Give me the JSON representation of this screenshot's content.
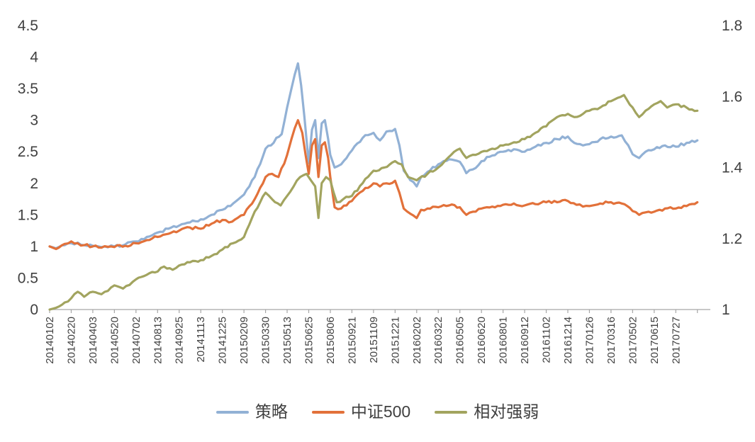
{
  "chart_data": {
    "type": "line",
    "title": "",
    "xlabel": "",
    "ylabel_left": "",
    "ylabel_right": "",
    "grid": false,
    "legend_position": "bottom",
    "axis_color": "#a6a6a6",
    "label_color": "#404040",
    "x_domain": [
      0,
      30.6
    ],
    "x_tick_labels": [
      "20140102",
      "20140220",
      "20140403",
      "20140520",
      "20140702",
      "20140813",
      "20140925",
      "20141113",
      "20141225",
      "20150209",
      "20150330",
      "20150513",
      "20150625",
      "20150806",
      "20150921",
      "20151109",
      "20151221",
      "20160202",
      "20160322",
      "20160505",
      "20160620",
      "20160801",
      "20160912",
      "20161102",
      "20161214",
      "20170126",
      "20170316",
      "20170502",
      "20170615",
      "20170727"
    ],
    "left_axis": {
      "min": 0,
      "max": 4.5,
      "ticks": [
        0,
        0.5,
        1,
        1.5,
        2,
        2.5,
        3,
        3.5,
        4,
        4.5
      ],
      "tick_labels": [
        "0",
        "0.5",
        "1",
        "1.5",
        "2",
        "2.5",
        "3",
        "3.5",
        "4",
        "4.5"
      ]
    },
    "right_axis": {
      "min": 1,
      "max": 1.8,
      "ticks": [
        1,
        1.2,
        1.4,
        1.6,
        1.8
      ],
      "tick_labels": [
        "1",
        "1.2",
        "1.4",
        "1.6",
        "1.8"
      ]
    },
    "series": [
      {
        "name": "策略",
        "axis": "left",
        "color": "#92b1d5",
        "points": [
          [
            0,
            1.0
          ],
          [
            0.3,
            0.97
          ],
          [
            0.7,
            1.02
          ],
          [
            1,
            1.05
          ],
          [
            1.3,
            1.06
          ],
          [
            1.6,
            1.02
          ],
          [
            2,
            1.01
          ],
          [
            2.4,
            0.99
          ],
          [
            3,
            1.0
          ],
          [
            3.5,
            1.03
          ],
          [
            4,
            1.08
          ],
          [
            4.5,
            1.15
          ],
          [
            5,
            1.22
          ],
          [
            5.5,
            1.28
          ],
          [
            6,
            1.33
          ],
          [
            6.5,
            1.38
          ],
          [
            7,
            1.43
          ],
          [
            7.5,
            1.5
          ],
          [
            8,
            1.58
          ],
          [
            8.5,
            1.68
          ],
          [
            9,
            1.82
          ],
          [
            9.5,
            2.1
          ],
          [
            10,
            2.55
          ],
          [
            10.25,
            2.6
          ],
          [
            10.5,
            2.72
          ],
          [
            10.75,
            2.78
          ],
          [
            11,
            3.2
          ],
          [
            11.2,
            3.5
          ],
          [
            11.35,
            3.72
          ],
          [
            11.5,
            3.9
          ],
          [
            11.65,
            3.55
          ],
          [
            11.8,
            3.05
          ],
          [
            12,
            2.32
          ],
          [
            12.15,
            2.85
          ],
          [
            12.3,
            3.0
          ],
          [
            12.45,
            2.4
          ],
          [
            12.6,
            2.95
          ],
          [
            12.75,
            3.0
          ],
          [
            12.9,
            2.7
          ],
          [
            13,
            2.45
          ],
          [
            13.2,
            2.25
          ],
          [
            13.5,
            2.3
          ],
          [
            13.75,
            2.4
          ],
          [
            14,
            2.52
          ],
          [
            14.5,
            2.72
          ],
          [
            15,
            2.8
          ],
          [
            15.3,
            2.68
          ],
          [
            15.6,
            2.82
          ],
          [
            16,
            2.86
          ],
          [
            16.2,
            2.6
          ],
          [
            16.4,
            2.2
          ],
          [
            16.7,
            2.05
          ],
          [
            17,
            1.95
          ],
          [
            17.2,
            2.1
          ],
          [
            17.5,
            2.18
          ],
          [
            18,
            2.3
          ],
          [
            18.5,
            2.38
          ],
          [
            19,
            2.34
          ],
          [
            19.3,
            2.16
          ],
          [
            19.6,
            2.22
          ],
          [
            20,
            2.35
          ],
          [
            20.5,
            2.44
          ],
          [
            21,
            2.5
          ],
          [
            21.5,
            2.54
          ],
          [
            22,
            2.5
          ],
          [
            22.5,
            2.58
          ],
          [
            23,
            2.64
          ],
          [
            23.5,
            2.7
          ],
          [
            24,
            2.74
          ],
          [
            24.3,
            2.64
          ],
          [
            24.7,
            2.6
          ],
          [
            25,
            2.62
          ],
          [
            25.5,
            2.7
          ],
          [
            26,
            2.74
          ],
          [
            26.5,
            2.76
          ],
          [
            26.8,
            2.6
          ],
          [
            27,
            2.46
          ],
          [
            27.3,
            2.4
          ],
          [
            27.6,
            2.5
          ],
          [
            28,
            2.54
          ],
          [
            28.5,
            2.6
          ],
          [
            29,
            2.58
          ],
          [
            29.5,
            2.64
          ],
          [
            30,
            2.68
          ]
        ]
      },
      {
        "name": "中证500",
        "axis": "left",
        "color": "#e2713a",
        "points": [
          [
            0,
            1.0
          ],
          [
            0.3,
            0.96
          ],
          [
            0.7,
            1.04
          ],
          [
            1,
            1.08
          ],
          [
            1.3,
            1.05
          ],
          [
            1.6,
            1.02
          ],
          [
            2,
            1.0
          ],
          [
            2.4,
            0.98
          ],
          [
            3,
            0.99
          ],
          [
            3.5,
            1.01
          ],
          [
            4,
            1.05
          ],
          [
            4.5,
            1.1
          ],
          [
            5,
            1.15
          ],
          [
            5.5,
            1.2
          ],
          [
            6,
            1.25
          ],
          [
            6.5,
            1.3
          ],
          [
            7,
            1.28
          ],
          [
            7.5,
            1.36
          ],
          [
            8,
            1.42
          ],
          [
            8.3,
            1.38
          ],
          [
            8.6,
            1.43
          ],
          [
            9,
            1.5
          ],
          [
            9.5,
            1.75
          ],
          [
            10,
            2.1
          ],
          [
            10.3,
            2.15
          ],
          [
            10.6,
            2.1
          ],
          [
            11,
            2.45
          ],
          [
            11.2,
            2.7
          ],
          [
            11.5,
            3.0
          ],
          [
            11.7,
            2.8
          ],
          [
            12,
            2.15
          ],
          [
            12.15,
            2.6
          ],
          [
            12.3,
            2.7
          ],
          [
            12.45,
            2.1
          ],
          [
            12.6,
            2.6
          ],
          [
            12.75,
            2.65
          ],
          [
            12.9,
            2.4
          ],
          [
            13,
            2.1
          ],
          [
            13.2,
            1.62
          ],
          [
            13.5,
            1.6
          ],
          [
            13.75,
            1.65
          ],
          [
            14,
            1.72
          ],
          [
            14.5,
            1.88
          ],
          [
            15,
            2.0
          ],
          [
            15.3,
            1.95
          ],
          [
            15.6,
            2.0
          ],
          [
            16,
            2.04
          ],
          [
            16.2,
            1.85
          ],
          [
            16.4,
            1.6
          ],
          [
            16.7,
            1.52
          ],
          [
            17,
            1.45
          ],
          [
            17.2,
            1.58
          ],
          [
            17.5,
            1.6
          ],
          [
            18,
            1.62
          ],
          [
            18.5,
            1.65
          ],
          [
            19,
            1.62
          ],
          [
            19.3,
            1.5
          ],
          [
            19.6,
            1.55
          ],
          [
            20,
            1.6
          ],
          [
            20.5,
            1.63
          ],
          [
            21,
            1.66
          ],
          [
            21.5,
            1.68
          ],
          [
            22,
            1.65
          ],
          [
            22.5,
            1.67
          ],
          [
            23,
            1.7
          ],
          [
            23.5,
            1.7
          ],
          [
            24,
            1.72
          ],
          [
            24.4,
            1.66
          ],
          [
            24.7,
            1.63
          ],
          [
            25,
            1.64
          ],
          [
            25.5,
            1.68
          ],
          [
            26,
            1.7
          ],
          [
            26.5,
            1.68
          ],
          [
            27,
            1.56
          ],
          [
            27.3,
            1.5
          ],
          [
            27.6,
            1.54
          ],
          [
            28,
            1.55
          ],
          [
            28.5,
            1.6
          ],
          [
            29,
            1.6
          ],
          [
            29.5,
            1.64
          ],
          [
            30,
            1.7
          ]
        ]
      },
      {
        "name": "相对强弱",
        "axis": "right",
        "color": "#a2a45f",
        "points": [
          [
            0,
            1.0
          ],
          [
            0.3,
            1.005
          ],
          [
            0.7,
            1.02
          ],
          [
            1,
            1.032
          ],
          [
            1.3,
            1.05
          ],
          [
            1.6,
            1.036
          ],
          [
            2,
            1.05
          ],
          [
            2.4,
            1.043
          ],
          [
            3,
            1.068
          ],
          [
            3.4,
            1.059
          ],
          [
            4,
            1.085
          ],
          [
            4.5,
            1.098
          ],
          [
            5,
            1.107
          ],
          [
            5.3,
            1.121
          ],
          [
            5.7,
            1.112
          ],
          [
            6,
            1.124
          ],
          [
            6.5,
            1.133
          ],
          [
            7,
            1.139
          ],
          [
            7.5,
            1.151
          ],
          [
            8,
            1.169
          ],
          [
            8.5,
            1.187
          ],
          [
            9,
            1.204
          ],
          [
            9.5,
            1.276
          ],
          [
            10,
            1.329
          ],
          [
            10.3,
            1.311
          ],
          [
            10.7,
            1.293
          ],
          [
            11,
            1.32
          ],
          [
            11.3,
            1.347
          ],
          [
            11.6,
            1.373
          ],
          [
            11.9,
            1.382
          ],
          [
            12.1,
            1.364
          ],
          [
            12.3,
            1.347
          ],
          [
            12.45,
            1.258
          ],
          [
            12.6,
            1.356
          ],
          [
            12.8,
            1.373
          ],
          [
            13,
            1.364
          ],
          [
            13.3,
            1.302
          ],
          [
            13.6,
            1.311
          ],
          [
            14,
            1.32
          ],
          [
            14.5,
            1.356
          ],
          [
            15,
            1.391
          ],
          [
            15.5,
            1.4
          ],
          [
            16,
            1.418
          ],
          [
            16.3,
            1.409
          ],
          [
            16.6,
            1.373
          ],
          [
            17,
            1.364
          ],
          [
            17.5,
            1.382
          ],
          [
            18,
            1.4
          ],
          [
            18.3,
            1.418
          ],
          [
            18.6,
            1.436
          ],
          [
            19,
            1.453
          ],
          [
            19.3,
            1.427
          ],
          [
            19.6,
            1.436
          ],
          [
            20,
            1.444
          ],
          [
            20.5,
            1.453
          ],
          [
            21,
            1.462
          ],
          [
            21.5,
            1.471
          ],
          [
            22,
            1.48
          ],
          [
            22.5,
            1.498
          ],
          [
            23,
            1.516
          ],
          [
            23.5,
            1.542
          ],
          [
            24,
            1.551
          ],
          [
            24.3,
            1.542
          ],
          [
            24.7,
            1.551
          ],
          [
            25,
            1.56
          ],
          [
            25.5,
            1.569
          ],
          [
            26,
            1.587
          ],
          [
            26.3,
            1.596
          ],
          [
            26.6,
            1.604
          ],
          [
            27,
            1.569
          ],
          [
            27.3,
            1.542
          ],
          [
            27.6,
            1.56
          ],
          [
            28,
            1.578
          ],
          [
            28.3,
            1.587
          ],
          [
            28.6,
            1.569
          ],
          [
            29,
            1.578
          ],
          [
            29.5,
            1.569
          ],
          [
            30,
            1.56
          ]
        ]
      }
    ],
    "legend": [
      "策略",
      "中证500",
      "相对强弱"
    ]
  }
}
